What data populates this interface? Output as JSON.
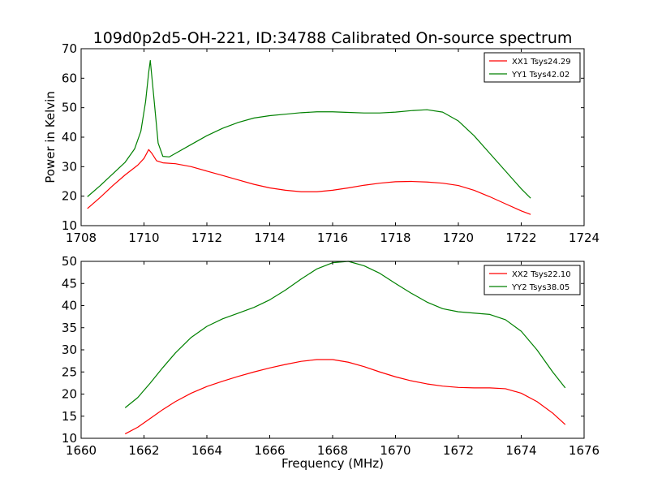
{
  "figure": {
    "title": "109d0p2d5-OH-221, ID:34788 Calibrated On-source spectrum",
    "ylabel": "Power in Kelvin",
    "xlabel": "Frequency (MHz)"
  },
  "chart_data": [
    {
      "type": "line",
      "title": "109d0p2d5-OH-221, ID:34788 Calibrated On-source spectrum",
      "xlabel": "",
      "ylabel": "Power in Kelvin",
      "xlim": [
        1708,
        1724
      ],
      "ylim": [
        10,
        70
      ],
      "xticks": [
        1708,
        1710,
        1712,
        1714,
        1716,
        1718,
        1720,
        1722,
        1724
      ],
      "yticks": [
        10,
        20,
        30,
        40,
        50,
        60,
        70
      ],
      "grid": false,
      "legend_position": "top-right",
      "series": [
        {
          "name": "XX1 Tsys24.29",
          "color": "#ff0000",
          "x": [
            1708.2,
            1708.6,
            1709.0,
            1709.4,
            1709.8,
            1710.0,
            1710.15,
            1710.25,
            1710.4,
            1710.6,
            1711.0,
            1711.5,
            1712.0,
            1712.5,
            1713.0,
            1713.5,
            1714.0,
            1714.5,
            1715.0,
            1715.5,
            1716.0,
            1716.5,
            1717.0,
            1717.5,
            1718.0,
            1718.5,
            1719.0,
            1719.5,
            1720.0,
            1720.5,
            1721.0,
            1721.5,
            1722.0,
            1722.3
          ],
          "y": [
            15.8,
            19.5,
            23.5,
            27.2,
            30.5,
            32.8,
            35.8,
            34.5,
            32.0,
            31.3,
            31.0,
            30.0,
            28.5,
            27.0,
            25.5,
            24.0,
            22.8,
            22.0,
            21.5,
            21.5,
            22.0,
            22.8,
            23.7,
            24.4,
            24.9,
            25.0,
            24.8,
            24.4,
            23.6,
            22.0,
            19.8,
            17.4,
            15.0,
            13.8
          ]
        },
        {
          "name": "YY1 Tsys42.02",
          "color": "#008000",
          "x": [
            1708.2,
            1708.6,
            1709.0,
            1709.4,
            1709.7,
            1709.9,
            1710.05,
            1710.15,
            1710.2,
            1710.3,
            1710.45,
            1710.6,
            1710.8,
            1711.0,
            1711.5,
            1712.0,
            1712.5,
            1713.0,
            1713.5,
            1714.0,
            1714.5,
            1715.0,
            1715.5,
            1716.0,
            1716.5,
            1717.0,
            1717.5,
            1718.0,
            1718.5,
            1719.0,
            1719.5,
            1720.0,
            1720.5,
            1721.0,
            1721.5,
            1722.0,
            1722.3
          ],
          "y": [
            19.8,
            23.5,
            27.5,
            31.5,
            36.0,
            42.0,
            52.0,
            62.0,
            66.0,
            55.0,
            38.0,
            33.5,
            33.3,
            34.5,
            37.5,
            40.5,
            43.0,
            45.0,
            46.5,
            47.3,
            47.8,
            48.3,
            48.6,
            48.6,
            48.4,
            48.2,
            48.2,
            48.5,
            49.0,
            49.3,
            48.5,
            45.5,
            40.5,
            34.5,
            28.5,
            22.5,
            19.3
          ]
        }
      ]
    },
    {
      "type": "line",
      "title": "",
      "xlabel": "Frequency (MHz)",
      "ylabel": "",
      "xlim": [
        1660,
        1676
      ],
      "ylim": [
        10,
        50
      ],
      "xticks": [
        1660,
        1662,
        1664,
        1666,
        1668,
        1670,
        1672,
        1674,
        1676
      ],
      "yticks": [
        10,
        15,
        20,
        25,
        30,
        35,
        40,
        45,
        50
      ],
      "grid": false,
      "legend_position": "top-right",
      "series": [
        {
          "name": "XX2 Tsys22.10",
          "color": "#ff0000",
          "x": [
            1661.4,
            1661.8,
            1662.2,
            1662.6,
            1663.0,
            1663.5,
            1664.0,
            1664.5,
            1665.0,
            1665.5,
            1666.0,
            1666.5,
            1667.0,
            1667.5,
            1668.0,
            1668.5,
            1669.0,
            1669.5,
            1670.0,
            1670.5,
            1671.0,
            1671.5,
            1672.0,
            1672.5,
            1673.0,
            1673.5,
            1674.0,
            1674.5,
            1675.0,
            1675.4
          ],
          "y": [
            11.0,
            12.5,
            14.5,
            16.5,
            18.3,
            20.2,
            21.7,
            22.9,
            24.0,
            25.0,
            25.9,
            26.7,
            27.4,
            27.8,
            27.8,
            27.2,
            26.2,
            25.0,
            23.9,
            23.0,
            22.3,
            21.8,
            21.5,
            21.4,
            21.4,
            21.2,
            20.2,
            18.3,
            15.7,
            13.1
          ]
        },
        {
          "name": "YY2 Tsys38.05",
          "color": "#008000",
          "x": [
            1661.4,
            1661.8,
            1662.2,
            1662.6,
            1663.0,
            1663.5,
            1664.0,
            1664.5,
            1665.0,
            1665.5,
            1666.0,
            1666.5,
            1667.0,
            1667.5,
            1668.0,
            1668.5,
            1669.0,
            1669.5,
            1670.0,
            1670.5,
            1671.0,
            1671.5,
            1672.0,
            1672.5,
            1673.0,
            1673.5,
            1674.0,
            1674.5,
            1675.0,
            1675.4
          ],
          "y": [
            16.9,
            19.2,
            22.5,
            26.0,
            29.3,
            32.8,
            35.3,
            37.0,
            38.3,
            39.6,
            41.3,
            43.5,
            46.0,
            48.3,
            49.7,
            50.0,
            49.0,
            47.3,
            45.0,
            42.8,
            40.8,
            39.3,
            38.6,
            38.3,
            38.0,
            36.8,
            34.2,
            30.0,
            25.0,
            21.4
          ]
        }
      ]
    }
  ]
}
